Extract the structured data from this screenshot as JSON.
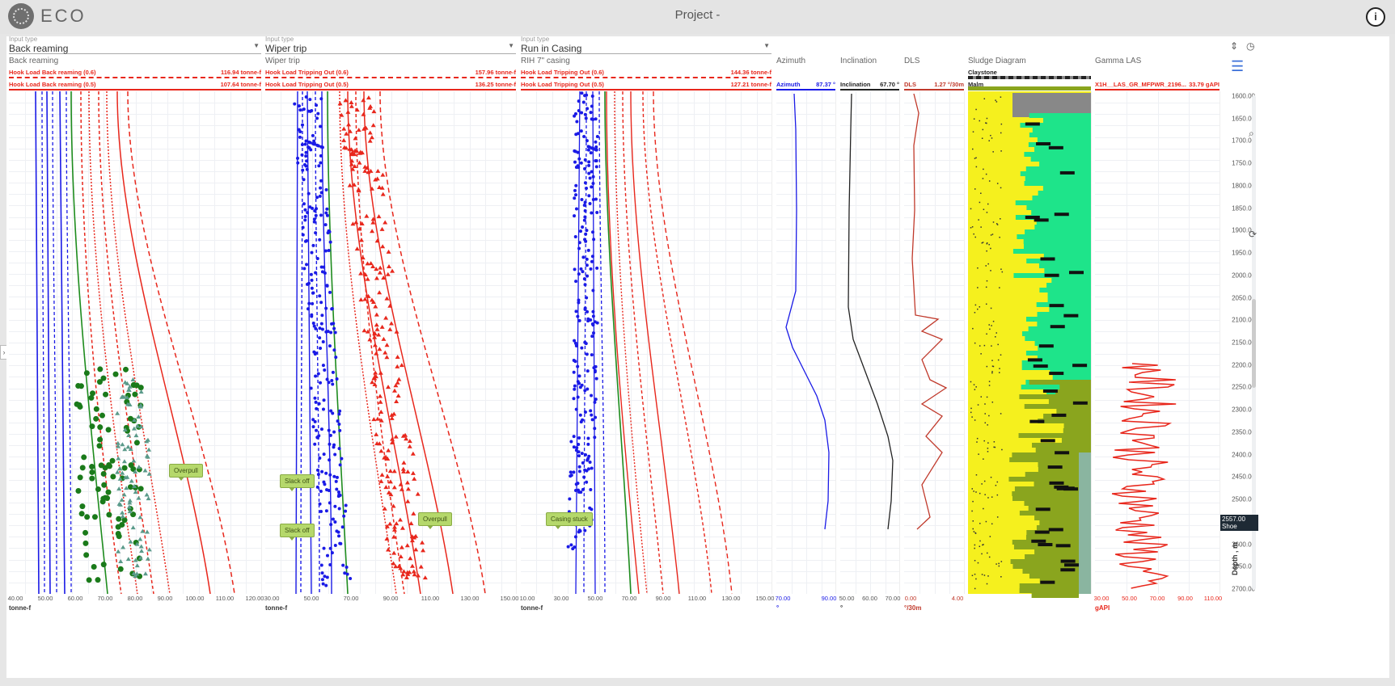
{
  "app": {
    "logo_text": "ECO",
    "project_title": "Project -"
  },
  "icons": [
    "info-icon",
    "expand-icon",
    "history-icon",
    "list-icon",
    "search-icon",
    "refresh-icon",
    "chevron-right-icon"
  ],
  "colors": {
    "red": "#e8271c",
    "blue": "#1a1ae6",
    "green": "#1e8c1e",
    "accent_blue": "#3a6fd8",
    "lith_yellow": "#f5f01e",
    "lith_green": "#1ee48a",
    "lith_olive": "#8aa51e"
  },
  "tracks": [
    {
      "id": "back-reaming",
      "input_label": "Input type",
      "input_value": "Back reaming",
      "title": "Back reaming",
      "legend": [
        {
          "label": "Hook Load Back reaming (0.6)",
          "value": "116.94 tonne-f",
          "style": "dashed"
        },
        {
          "label": "Hook Load Back reaming (0.5)",
          "value": "107.64 tonne-f",
          "style": "solid"
        }
      ],
      "ticks": [
        "40.00",
        "50.00",
        "60.00",
        "70.00",
        "80.00",
        "90.00",
        "100.00",
        "110.00",
        "120.00"
      ],
      "unit": "tonne-f",
      "callouts": [
        "Overpull"
      ]
    },
    {
      "id": "wiper-trip",
      "input_label": "Input type",
      "input_value": "Wiper trip",
      "title": "Wiper trip",
      "legend": [
        {
          "label": "Hook Load Tripping Out (0.6)",
          "value": "157.96 tonne-f",
          "style": "dashed"
        },
        {
          "label": "Hook Load Tripping Out (0.5)",
          "value": "136.25 tonne-f",
          "style": "solid"
        }
      ],
      "ticks": [
        "30.00",
        "50.00",
        "70.00",
        "90.00",
        "110.00",
        "130.00",
        "150.00"
      ],
      "unit": "tonne-f",
      "callouts": [
        "Slack off",
        "Slack off",
        "Overpull"
      ]
    },
    {
      "id": "run-in-casing",
      "input_label": "Input type",
      "input_value": "Run in Casing",
      "title": "RIH 7\" casing",
      "legend": [
        {
          "label": "Hook Load Tripping Out (0.6)",
          "value": "144.36 tonne-f",
          "style": "dashed"
        },
        {
          "label": "Hook Load Tripping Out (0.5)",
          "value": "127.21 tonne-f",
          "style": "solid"
        }
      ],
      "ticks": [
        "10.00",
        "30.00",
        "50.00",
        "70.00",
        "90.00",
        "110.00",
        "130.00",
        "150.00"
      ],
      "unit": "tonne-f",
      "callouts": [
        "Casing stuck"
      ]
    }
  ],
  "small_tracks": [
    {
      "id": "azimuth",
      "title": "Azimuth",
      "legend_label": "Azimuth",
      "legend_value": "87.37 °",
      "ticks": [
        "70.00",
        "90.00"
      ],
      "unit": "°"
    },
    {
      "id": "inclination",
      "title": "Inclination",
      "legend_label": "Inclination",
      "legend_value": "67.70 °",
      "ticks": [
        "50.00",
        "60.00",
        "70.00"
      ],
      "unit": "°"
    },
    {
      "id": "dls",
      "title": "DLS",
      "legend_label": "DLS",
      "legend_value": "1.27 °/30m",
      "ticks": [
        "0.00",
        "4.00"
      ],
      "unit": "°/30m"
    }
  ],
  "sludge": {
    "title": "Sludge Diagram",
    "top_label": "Claystone",
    "legend_label": "Malm"
  },
  "gamma": {
    "title": "Gamma LAS",
    "legend_label": "X1H__LAS_GR_MFPWR_2196...",
    "legend_value": "33.79 gAPI",
    "ticks": [
      "30.00",
      "50.00",
      "70.00",
      "90.00",
      "110.00"
    ],
    "unit": "gAPI"
  },
  "depth": {
    "ticks": [
      "1600.00",
      "1650.00",
      "1700.00",
      "1750.00",
      "1800.00",
      "1850.00",
      "1900.00",
      "1950.00",
      "2000.00",
      "2050.00",
      "2100.00",
      "2150.00",
      "2200.00",
      "2250.00",
      "2300.00",
      "2350.00",
      "2400.00",
      "2450.00",
      "2500.00",
      "2550.00",
      "2600.00",
      "2650.00",
      "2700.00"
    ],
    "shoe_value": "2557.00",
    "shoe_label": "Shoe",
    "axis_label": "Depth , m"
  }
}
